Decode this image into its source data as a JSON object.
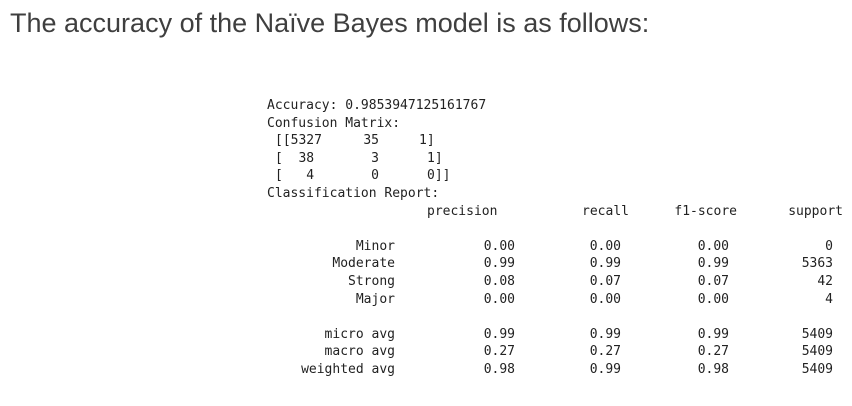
{
  "heading": "The accuracy of the Naïve Bayes model is as follows:",
  "output": {
    "accuracy_line": "Accuracy: 0.9853947125161767",
    "cm_label": "Confusion Matrix:",
    "matrix": [
      [
        "[[5327",
        "35",
        "1]"
      ],
      [
        "[  38",
        "3",
        "1]"
      ],
      [
        "[   4",
        "0",
        "0]]"
      ]
    ],
    "report_label": "Classification Report:",
    "report_header": [
      "precision",
      "recall",
      "f1-score",
      "support"
    ],
    "class_rows": [
      {
        "label": "Minor",
        "precision": "0.00",
        "recall": "0.00",
        "f1": "0.00",
        "support": "0"
      },
      {
        "label": "Moderate",
        "precision": "0.99",
        "recall": "0.99",
        "f1": "0.99",
        "support": "5363"
      },
      {
        "label": "Strong",
        "precision": "0.08",
        "recall": "0.07",
        "f1": "0.07",
        "support": "42"
      },
      {
        "label": "Major",
        "precision": "0.00",
        "recall": "0.00",
        "f1": "0.00",
        "support": "4"
      }
    ],
    "avg_rows": [
      {
        "label": "micro avg",
        "precision": "0.99",
        "recall": "0.99",
        "f1": "0.99",
        "support": "5409"
      },
      {
        "label": "macro avg",
        "precision": "0.27",
        "recall": "0.27",
        "f1": "0.27",
        "support": "5409"
      },
      {
        "label": "weighted avg",
        "precision": "0.98",
        "recall": "0.99",
        "f1": "0.98",
        "support": "5409"
      }
    ]
  }
}
